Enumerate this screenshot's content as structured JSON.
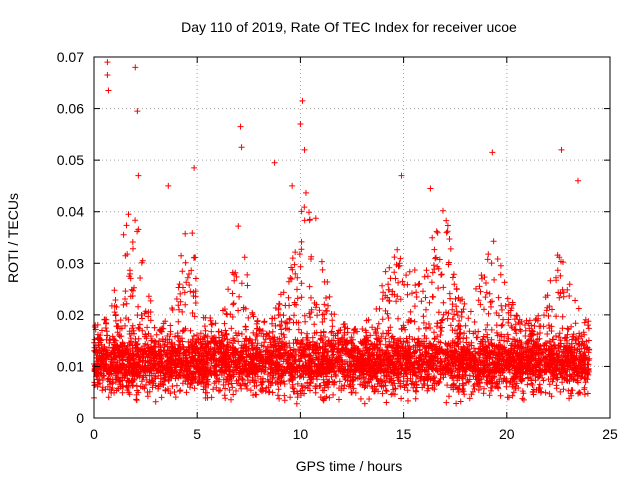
{
  "chart_data": {
    "type": "scatter",
    "title": "Day 110 of 2019, Rate Of TEC Index for receiver ucoe",
    "xlabel": "GPS time / hours",
    "ylabel": "ROTI / TECUs",
    "xlim": [
      0,
      25
    ],
    "ylim": [
      0,
      0.07
    ],
    "xticks": [
      0,
      5,
      10,
      15,
      20,
      25
    ],
    "yticks": [
      0,
      0.01,
      0.02,
      0.03,
      0.04,
      0.05,
      0.06,
      0.07
    ],
    "xtick_labels": [
      "0",
      "5",
      "10",
      "15",
      "20",
      "25"
    ],
    "ytick_labels": [
      "0",
      "0.01",
      "0.02",
      "0.03",
      "0.04",
      "0.05",
      "0.06",
      "0.07"
    ],
    "grid": true,
    "marker": "+",
    "color": "#ff0000",
    "series": [
      {
        "name": "ROTI",
        "data_range_x": [
          0,
          24
        ],
        "notable_points": [
          {
            "x": 0.65,
            "y": 0.069
          },
          {
            "x": 0.65,
            "y": 0.0665
          },
          {
            "x": 0.7,
            "y": 0.0635
          },
          {
            "x": 2.0,
            "y": 0.068
          },
          {
            "x": 2.1,
            "y": 0.0595
          },
          {
            "x": 2.15,
            "y": 0.047
          },
          {
            "x": 10.1,
            "y": 0.0615
          },
          {
            "x": 10.0,
            "y": 0.057
          },
          {
            "x": 10.2,
            "y": 0.052
          },
          {
            "x": 7.1,
            "y": 0.0565
          },
          {
            "x": 7.15,
            "y": 0.0525
          },
          {
            "x": 4.85,
            "y": 0.0485
          },
          {
            "x": 8.75,
            "y": 0.0495
          },
          {
            "x": 9.6,
            "y": 0.045
          },
          {
            "x": 19.3,
            "y": 0.0515
          },
          {
            "x": 22.65,
            "y": 0.052
          },
          {
            "x": 23.45,
            "y": 0.046
          },
          {
            "x": 14.9,
            "y": 0.047
          },
          {
            "x": 3.6,
            "y": 0.045
          },
          {
            "x": 16.3,
            "y": 0.0445
          }
        ]
      }
    ]
  }
}
